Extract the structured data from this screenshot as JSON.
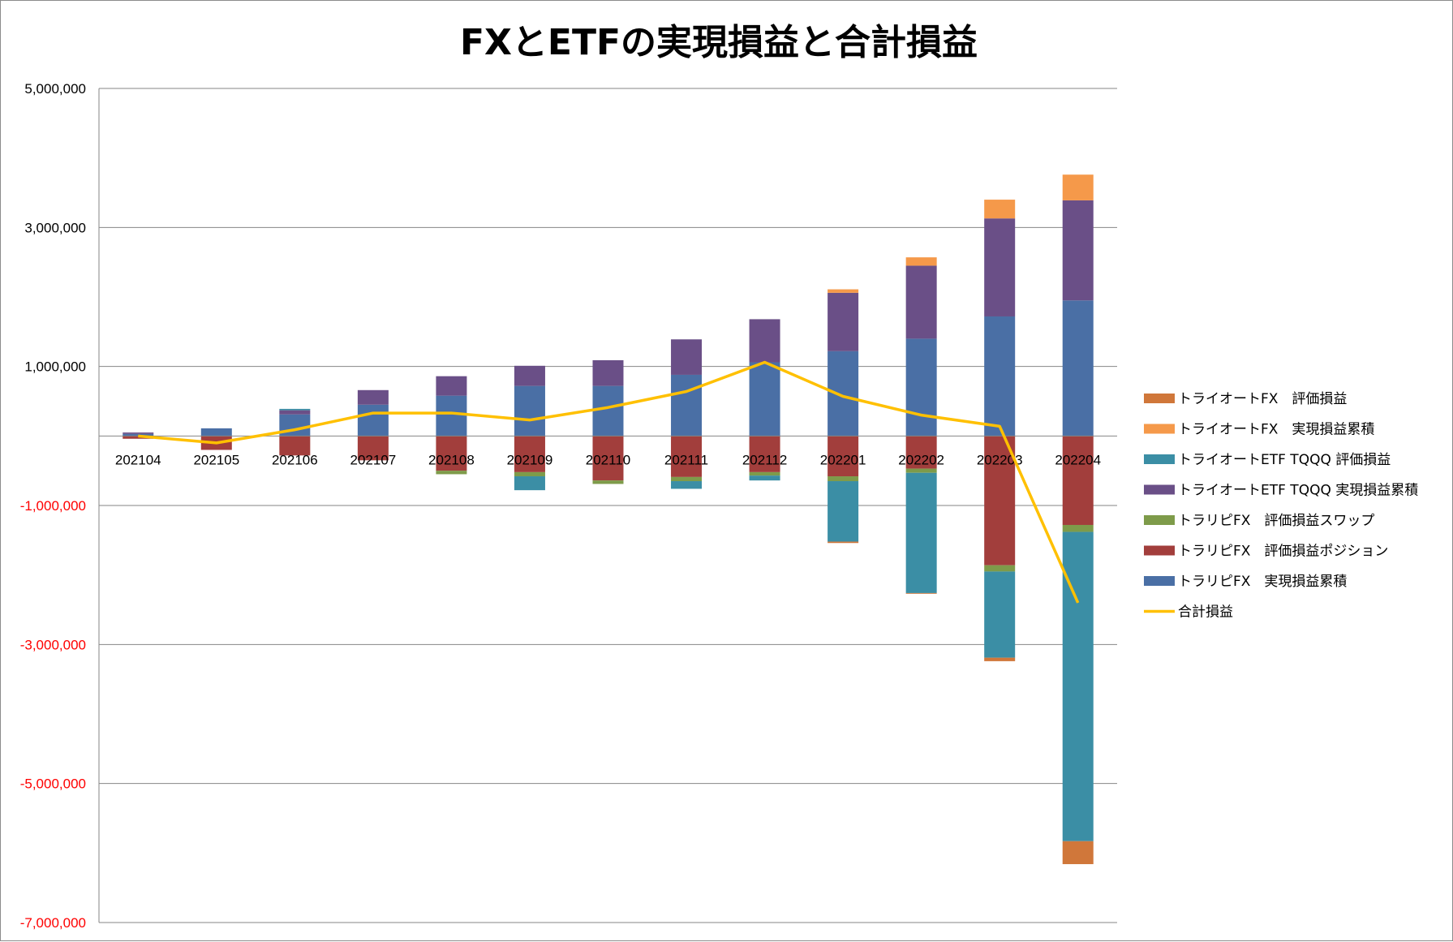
{
  "chart_data": {
    "type": "bar",
    "stacked": true,
    "title": "FXとETFの実現損益と合計損益",
    "xlabel": "",
    "ylabel": "",
    "ylim": [
      -7000000,
      5000000
    ],
    "y_ticks": [
      5000000,
      3000000,
      1000000,
      -1000000,
      -3000000,
      -5000000,
      -7000000
    ],
    "y_tick_labels": [
      "5,000,000",
      "3,000,000",
      "1,000,000",
      "-1,000,000",
      "-3,000,000",
      "-5,000,000",
      "-7,000,000"
    ],
    "negative_tick_color": "#ff0000",
    "grid": true,
    "legend_position": "right",
    "categories": [
      "202104",
      "202105",
      "202106",
      "202107",
      "202108",
      "202109",
      "202110",
      "202111",
      "202112",
      "202201",
      "202202",
      "202203",
      "202204"
    ],
    "series": [
      {
        "name": "トラリピFX　実現損益累積",
        "color": "#4a6fa5",
        "values": [
          30000,
          110000,
          310000,
          450000,
          580000,
          720000,
          720000,
          880000,
          1060000,
          1220000,
          1400000,
          1720000,
          1950000
        ]
      },
      {
        "name": "トラリピFX　評価損益ポジション",
        "color": "#a23e3c",
        "values": [
          -40000,
          -200000,
          -280000,
          -350000,
          -500000,
          -520000,
          -640000,
          -590000,
          -520000,
          -580000,
          -470000,
          -1860000,
          -1280000
        ]
      },
      {
        "name": "トラリピFX　評価損益スワップ",
        "color": "#7e9b4a",
        "values": [
          0,
          0,
          0,
          0,
          -50000,
          -60000,
          -50000,
          -60000,
          -50000,
          -70000,
          -60000,
          -90000,
          -100000
        ]
      },
      {
        "name": "トライオートETF TQQQ 実現損益累積",
        "color": "#6a4f87",
        "values": [
          20000,
          0,
          60000,
          210000,
          280000,
          290000,
          370000,
          510000,
          620000,
          840000,
          1050000,
          1410000,
          1440000
        ]
      },
      {
        "name": "トライオートETF TQQQ 評価損益",
        "color": "#3b8ea5",
        "values": [
          0,
          0,
          20000,
          0,
          0,
          -200000,
          0,
          -110000,
          -70000,
          -870000,
          -1730000,
          -1240000,
          -4450000
        ]
      },
      {
        "name": "トライオートFX　実現損益累積",
        "color": "#f5994a",
        "values": [
          0,
          0,
          0,
          0,
          0,
          0,
          0,
          0,
          0,
          50000,
          120000,
          270000,
          370000
        ]
      },
      {
        "name": "トライオートFX　評価損益",
        "color": "#d0773a",
        "values": [
          0,
          0,
          0,
          0,
          0,
          0,
          0,
          0,
          0,
          -20000,
          -10000,
          -50000,
          -330000
        ]
      }
    ],
    "line_series": {
      "name": "合計損益",
      "color": "#ffc000",
      "values": [
        0,
        -100000,
        90000,
        330000,
        330000,
        230000,
        410000,
        640000,
        1060000,
        570000,
        300000,
        140000,
        -2400000
      ]
    },
    "legend_order": [
      "トライオートFX　評価損益",
      "トライオートFX　実現損益累積",
      "トライオートETF TQQQ 評価損益",
      "トライオートETF TQQQ 実現損益累積",
      "トラリピFX　評価損益スワップ",
      "トラリピFX　評価損益ポジション",
      "トラリピFX　実現損益累積",
      "合計損益"
    ]
  }
}
